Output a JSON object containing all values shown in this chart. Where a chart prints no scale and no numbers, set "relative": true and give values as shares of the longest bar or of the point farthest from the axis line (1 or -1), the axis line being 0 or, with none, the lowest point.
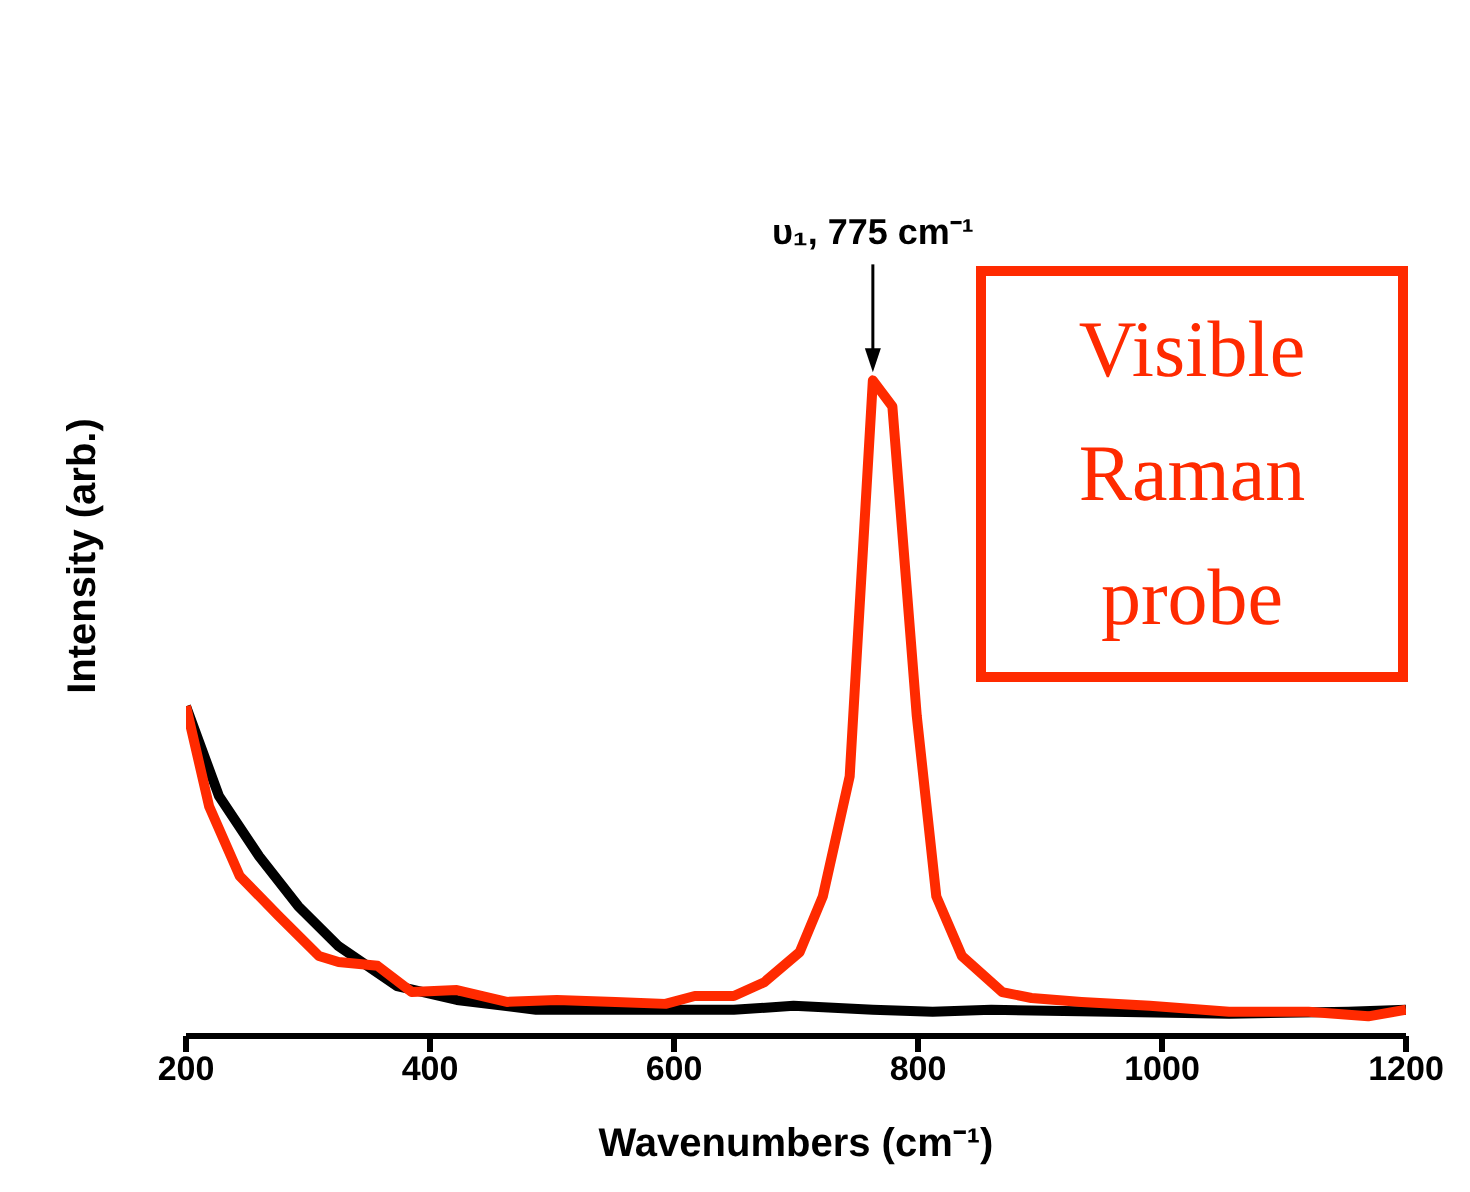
{
  "chart_data": {
    "type": "line",
    "relative": true,
    "xlabel": "Wavenumbers (cm⁻¹)",
    "ylabel": "Intensity (arb.)",
    "xlim": [
      200,
      1200
    ],
    "xticks": [
      200,
      400,
      600,
      800,
      1000,
      1200
    ],
    "grid": false,
    "marker": "none",
    "line_style": "solid",
    "annotations": [
      "υ₁, 775 cm⁻¹",
      "Visible Raman probe"
    ],
    "series": [
      {
        "color": "#000000",
        "x": [
          200,
          227,
          260,
          292,
          325,
          373,
          422,
          487,
          568,
          649,
          698,
          763,
          812,
          860,
          958,
          1055,
          1153,
          1200
        ],
        "values": [
          0.503,
          0.366,
          0.274,
          0.198,
          0.137,
          0.076,
          0.055,
          0.04,
          0.04,
          0.04,
          0.046,
          0.04,
          0.037,
          0.04,
          0.037,
          0.034,
          0.037,
          0.04
        ]
      },
      {
        "color": "#ff2a00",
        "x": [
          200,
          219,
          244,
          276,
          309,
          325,
          357,
          385,
          422,
          463,
          504,
          552,
          593,
          617,
          649,
          674,
          703,
          722,
          744,
          763,
          779,
          799,
          815,
          836,
          869,
          893,
          934,
          990,
          1055,
          1120,
          1169,
          1200
        ],
        "values": [
          0.503,
          0.35,
          0.244,
          0.183,
          0.122,
          0.113,
          0.107,
          0.067,
          0.07,
          0.052,
          0.055,
          0.052,
          0.049,
          0.061,
          0.061,
          0.082,
          0.128,
          0.213,
          0.396,
          1.0,
          0.96,
          0.488,
          0.213,
          0.122,
          0.067,
          0.058,
          0.052,
          0.046,
          0.037,
          0.037,
          0.03,
          0.04
        ]
      }
    ]
  }
}
